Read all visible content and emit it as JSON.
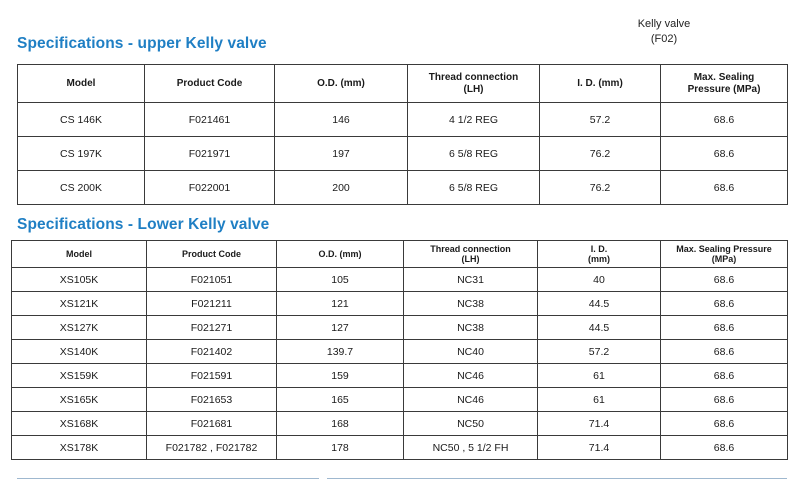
{
  "corner_label": {
    "line1": "Kelly valve",
    "line2": "(F02)"
  },
  "upper": {
    "title": "Specifications - upper Kelly valve",
    "headers": [
      "Model",
      "Product Code",
      "O.D. (mm)",
      "Thread connection|(LH)",
      "I. D. (mm)",
      "Max. Sealing|Pressure (MPa)"
    ],
    "rows": [
      [
        "CS 146K",
        "F021461",
        "146",
        "4 1/2 REG",
        "57.2",
        "68.6"
      ],
      [
        "CS 197K",
        "F021971",
        "197",
        "6 5/8 REG",
        "76.2",
        "68.6"
      ],
      [
        "CS 200K",
        "F022001",
        "200",
        "6 5/8 REG",
        "76.2",
        "68.6"
      ]
    ]
  },
  "lower": {
    "title": "Specifications - Lower Kelly valve",
    "headers": [
      "Model",
      "Product Code",
      "O.D. (mm)",
      "Thread connection|(LH)",
      "I. D.|(mm)",
      "Max. Sealing Pressure|(MPa)"
    ],
    "rows": [
      [
        "XS105K",
        "F021051",
        "105",
        "NC31",
        "40",
        "68.6"
      ],
      [
        "XS121K",
        "F021211",
        "121",
        "NC38",
        "44.5",
        "68.6"
      ],
      [
        "XS127K",
        "F021271",
        "127",
        "NC38",
        "44.5",
        "68.6"
      ],
      [
        "XS140K",
        "F021402",
        "139.7",
        "NC40",
        "57.2",
        "68.6"
      ],
      [
        "XS159K",
        "F021591",
        "159",
        "NC46",
        "61",
        "68.6"
      ],
      [
        "XS165K",
        "F021653",
        "165",
        "NC46",
        "61",
        "68.6"
      ],
      [
        "XS168K",
        "F021681",
        "168",
        "NC50",
        "71.4",
        "68.6"
      ],
      [
        "XS178K",
        "F021782 , F021782",
        "178",
        "NC50 , 5 1/2 FH",
        "71.4",
        "68.6"
      ]
    ]
  },
  "colors": {
    "heading": "#1f7fc4",
    "border": "#3a3a3a"
  }
}
